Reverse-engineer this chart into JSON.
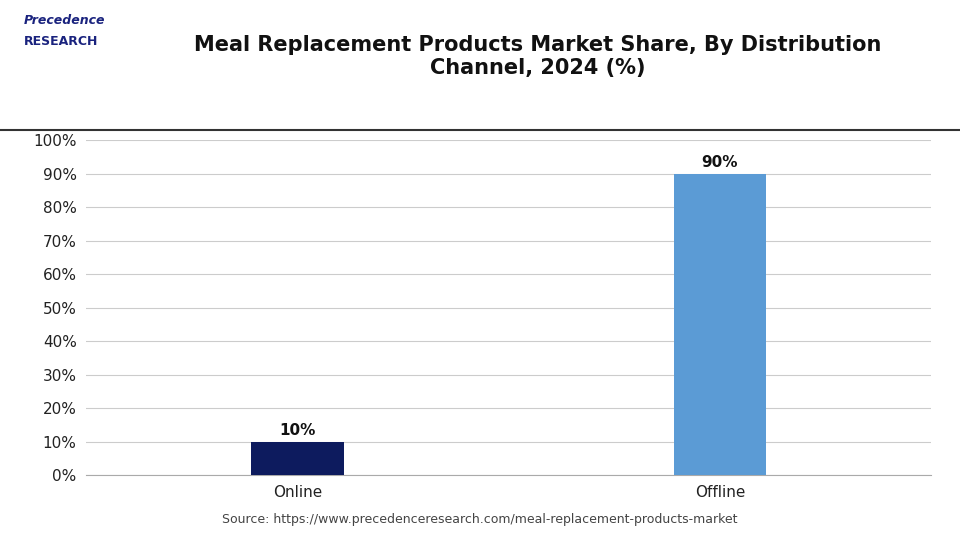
{
  "title": "Meal Replacement Products Market Share, By Distribution\nChannel, 2024 (%)",
  "categories": [
    "Online",
    "Offline"
  ],
  "values": [
    10,
    90
  ],
  "bar_colors": [
    "#0d1b5e",
    "#5b9bd5"
  ],
  "labels": [
    "10%",
    "90%"
  ],
  "ylim": [
    0,
    100
  ],
  "yticks": [
    0,
    10,
    20,
    30,
    40,
    50,
    60,
    70,
    80,
    90,
    100
  ],
  "ytick_labels": [
    "0%",
    "10%",
    "20%",
    "30%",
    "40%",
    "50%",
    "60%",
    "70%",
    "80%",
    "90%",
    "100%"
  ],
  "source_text": "Source: https://www.precedenceresearch.com/meal-replacement-products-market",
  "bg_color": "#ffffff",
  "plot_bg_color": "#ffffff",
  "grid_color": "#cccccc",
  "title_fontsize": 15,
  "tick_fontsize": 11,
  "label_fontsize": 11,
  "source_fontsize": 9,
  "bar_width": 0.22,
  "x_positions": [
    1,
    2
  ],
  "xlim": [
    0.5,
    2.5
  ]
}
